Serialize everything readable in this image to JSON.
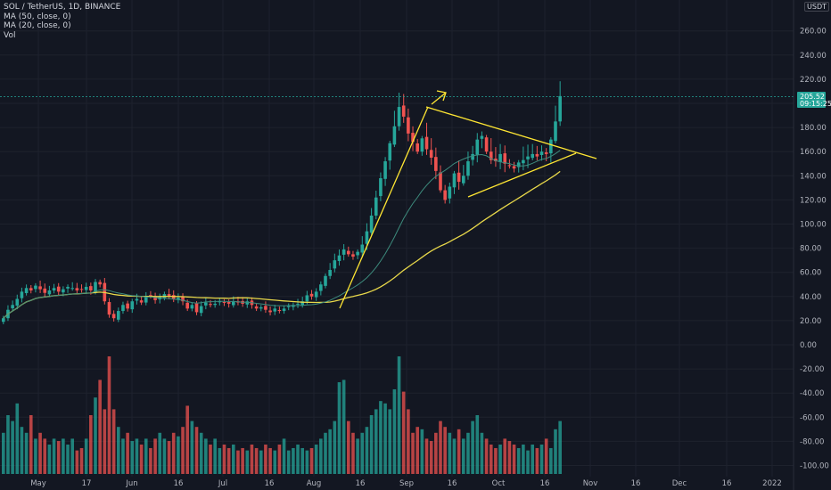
{
  "legend": {
    "symbol": "SOL / TetherUS, 1D, BINANCE",
    "ma50": "MA (50, close, 0)",
    "ma20": "MA (20, close, 0)",
    "vol": "Vol"
  },
  "currency_badge": "USDT",
  "price_tag": {
    "price": "205.52",
    "countdown": "09:15:25"
  },
  "colors": {
    "up": "#26a69a",
    "down": "#ef5350",
    "ma50": "#e8d84a",
    "ma20": "#3d8b7d",
    "drawing": "#ffe633",
    "price_line": "#26a69a",
    "grid": "#1e222d"
  },
  "chart_data": {
    "type": "candlestick",
    "title": "SOL / TetherUS, 1D, BINANCE",
    "x_ticks": [
      "May",
      "17",
      "Jun",
      "16",
      "Jul",
      "16",
      "Aug",
      "16",
      "Sep",
      "16",
      "Oct",
      "16",
      "Nov",
      "16",
      "Dec",
      "16",
      "2022"
    ],
    "y_ticks": [
      "260.00",
      "240.00",
      "220.00",
      "200.00",
      "180.00",
      "160.00",
      "140.00",
      "120.00",
      "100.00",
      "80.00",
      "60.00",
      "40.00",
      "20.00",
      "0.00",
      "-20.00",
      "-40.00",
      "-60.00",
      "-80.00",
      "-100.00"
    ],
    "y_tick_values": [
      260,
      240,
      220,
      200,
      180,
      160,
      140,
      120,
      100,
      80,
      60,
      40,
      20,
      0,
      -20,
      -40,
      -60,
      -80,
      -100
    ],
    "price_range": [
      -105,
      275
    ],
    "last_price": 205.52,
    "closes": [
      22,
      29,
      33,
      38,
      44,
      47,
      45,
      49,
      46,
      43,
      45,
      47,
      44,
      46,
      48,
      47,
      45,
      46,
      48,
      45,
      52,
      50,
      36,
      25,
      22,
      28,
      33,
      30,
      36,
      38,
      35,
      40,
      41,
      37,
      40,
      42,
      40,
      38,
      39,
      36,
      30,
      33,
      27,
      32,
      35,
      33,
      34,
      36,
      35,
      34,
      36,
      35,
      34,
      36,
      33,
      30,
      31,
      29,
      27,
      30,
      28,
      30,
      32,
      33,
      34,
      36,
      41,
      40,
      44,
      50,
      57,
      62,
      70,
      74,
      79,
      75,
      73,
      77,
      83,
      94,
      107,
      122,
      138,
      152,
      167,
      181,
      197,
      189,
      175,
      168,
      160,
      171,
      162,
      155,
      144,
      128,
      120,
      131,
      142,
      135,
      140,
      152,
      158,
      170,
      173,
      160,
      153,
      152,
      158,
      150,
      148,
      146,
      151,
      153,
      156,
      158,
      156,
      160,
      158,
      170,
      185,
      206
    ],
    "volume_scale": "relative",
    "volumes": [
      0.35,
      0.5,
      0.45,
      0.6,
      0.4,
      0.35,
      0.5,
      0.3,
      0.35,
      0.3,
      0.25,
      0.3,
      0.28,
      0.3,
      0.25,
      0.3,
      0.2,
      0.22,
      0.3,
      0.5,
      0.65,
      0.8,
      0.55,
      1.0,
      0.55,
      0.4,
      0.3,
      0.35,
      0.28,
      0.3,
      0.25,
      0.3,
      0.22,
      0.3,
      0.35,
      0.3,
      0.28,
      0.35,
      0.32,
      0.4,
      0.58,
      0.45,
      0.4,
      0.35,
      0.3,
      0.25,
      0.3,
      0.22,
      0.25,
      0.22,
      0.25,
      0.2,
      0.22,
      0.2,
      0.25,
      0.22,
      0.2,
      0.25,
      0.22,
      0.2,
      0.25,
      0.3,
      0.2,
      0.22,
      0.25,
      0.22,
      0.2,
      0.22,
      0.25,
      0.3,
      0.35,
      0.38,
      0.45,
      0.78,
      0.8,
      0.45,
      0.35,
      0.3,
      0.35,
      0.4,
      0.5,
      0.55,
      0.62,
      0.6,
      0.55,
      0.72,
      1.0,
      0.7,
      0.55,
      0.35,
      0.4,
      0.38,
      0.3,
      0.28,
      0.35,
      0.45,
      0.4,
      0.35,
      0.3,
      0.38,
      0.3,
      0.35,
      0.45,
      0.5,
      0.35,
      0.3,
      0.25,
      0.22,
      0.25,
      0.3,
      0.28,
      0.25,
      0.22,
      0.25,
      0.2,
      0.25,
      0.22,
      0.25,
      0.3,
      0.22,
      0.38,
      0.45
    ]
  }
}
